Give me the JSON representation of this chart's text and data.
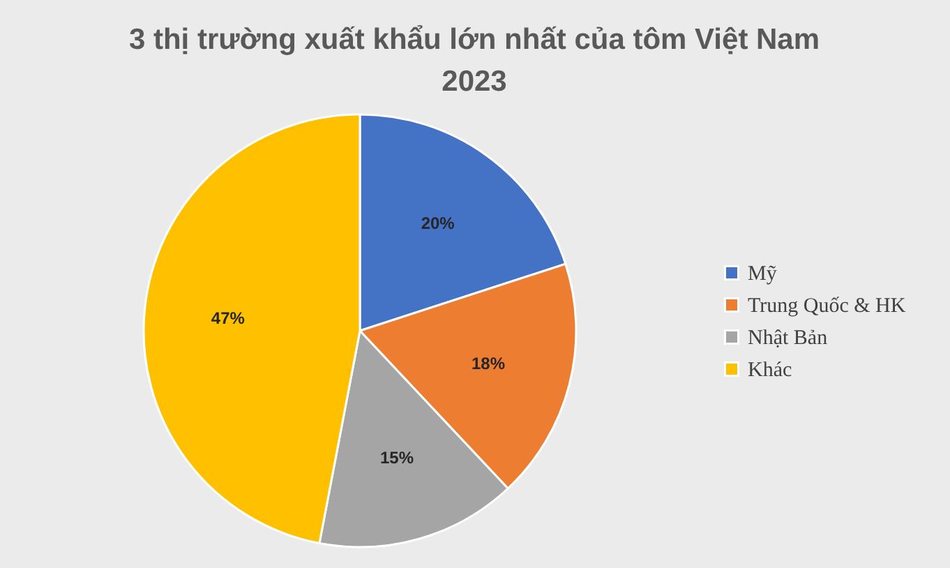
{
  "chart_data": {
    "type": "pie",
    "title": "3 thị trường xuất khẩu lớn nhất của tôm Việt Nam\n2023",
    "categories": [
      "Mỹ",
      "Trung Quốc & HK",
      "Nhật Bản",
      "Khác"
    ],
    "values": [
      20,
      18,
      15,
      47
    ],
    "colors": [
      "#4472c4",
      "#ed7d31",
      "#a5a5a5",
      "#ffc000"
    ],
    "value_labels": [
      "20%",
      "18%",
      "15%",
      "47%"
    ],
    "legend": "right"
  }
}
